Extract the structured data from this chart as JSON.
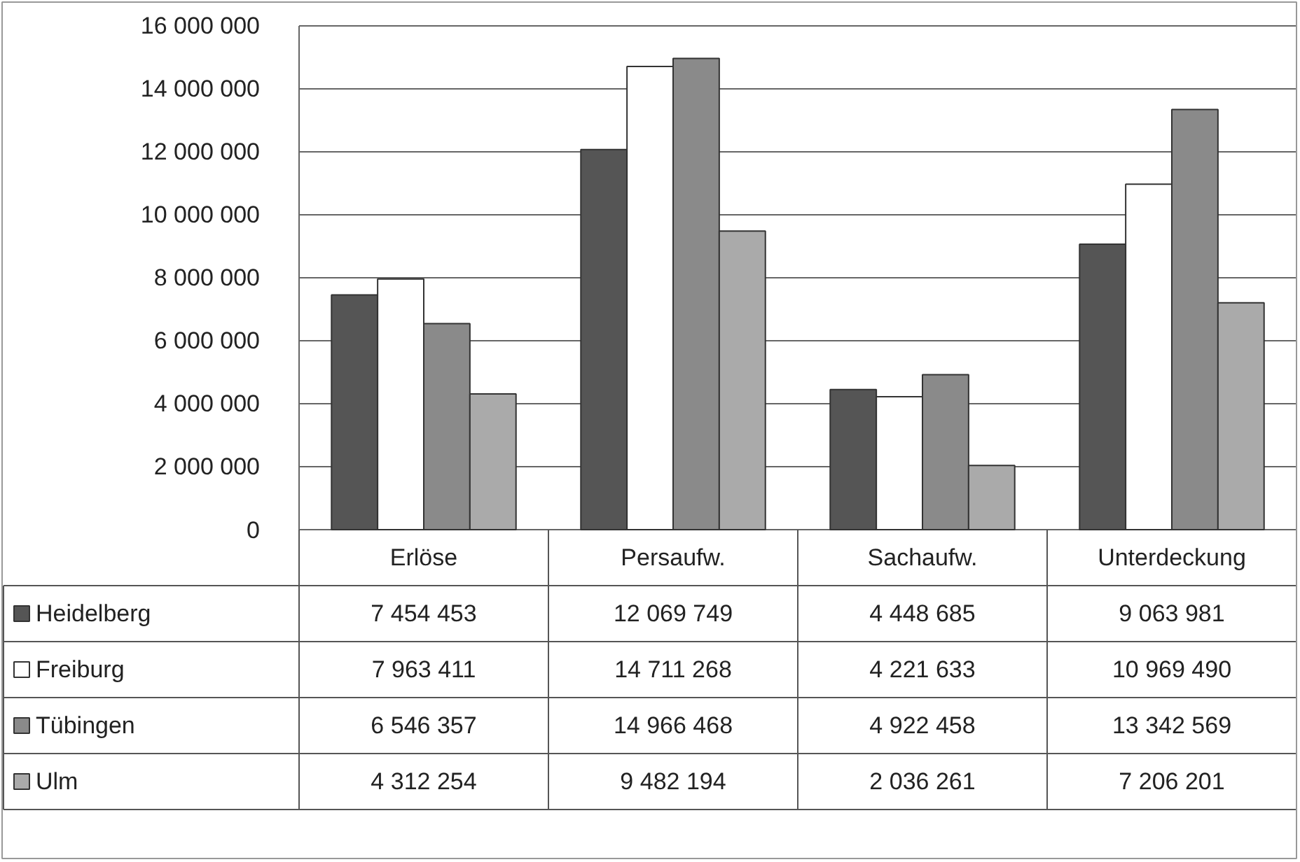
{
  "chart_data": {
    "type": "bar",
    "categories": [
      "Erlöse",
      "Persaufw.",
      "Sachaufw.",
      "Unterdeckung"
    ],
    "series": [
      {
        "name": "Heidelberg",
        "color": "#555555",
        "values": [
          7454453,
          12069749,
          4448685,
          9063981
        ]
      },
      {
        "name": "Freiburg",
        "color": "#ffffff",
        "values": [
          7963411,
          14711268,
          4221633,
          10969490
        ]
      },
      {
        "name": "Tübingen",
        "color": "#8a8a8a",
        "values": [
          6546357,
          14966468,
          4922458,
          13342569
        ]
      },
      {
        "name": "Ulm",
        "color": "#aaaaaa",
        "values": [
          4312254,
          9482194,
          2036261,
          7206201
        ]
      }
    ],
    "ylim": [
      0,
      16000000
    ],
    "yticks": [
      {
        "value": 0,
        "label": "0"
      },
      {
        "value": 2000000,
        "label": "2 000 000"
      },
      {
        "value": 4000000,
        "label": "4 000 000"
      },
      {
        "value": 6000000,
        "label": "6 000 000"
      },
      {
        "value": 8000000,
        "label": "8 000 000"
      },
      {
        "value": 10000000,
        "label": "10 000 000"
      },
      {
        "value": 12000000,
        "label": "12 000 000"
      },
      {
        "value": 14000000,
        "label": "14 000 000"
      },
      {
        "value": 16000000,
        "label": "16 000 000"
      }
    ],
    "grid": "y",
    "legend": "bottom left",
    "data_labels": true
  }
}
